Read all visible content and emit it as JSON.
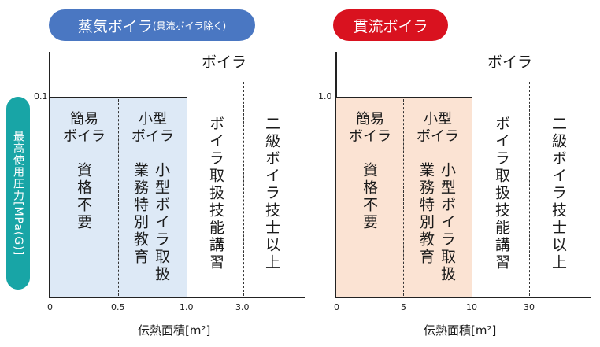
{
  "header": {
    "steam_badge_main": "蒸気ボイラ",
    "steam_badge_note": "(貫流ボイラ除く)",
    "once_through_badge": "貫流ボイラ"
  },
  "y_axis_label": "最高使用圧力[MPa(G)]",
  "steam_panel": {
    "y_tick": "0.1",
    "x_ticks": [
      "0",
      "0.5",
      "1.0",
      "3.0"
    ],
    "x_label": "伝熱面積[m²]",
    "boiler_heading": "ボイラ",
    "simple_boiler": "簡易\nボイラ",
    "small_boiler": "小型\nボイラ",
    "qualification_none": "資格不要",
    "small_training_1": "小型ボイラ取扱",
    "small_training_2": "業務特別教育",
    "handling_course": "ボイラ取扱技能講習",
    "second_class": "二級ボイラ技士以上"
  },
  "once_panel": {
    "y_tick": "1.0",
    "x_ticks": [
      "0",
      "5",
      "10",
      "30"
    ],
    "x_label": "伝熱面積[m²]",
    "boiler_heading": "ボイラ",
    "simple_boiler": "簡易\nボイラ",
    "small_boiler": "小型\nボイラ",
    "qualification_none": "資格不要",
    "small_training_1": "小型ボイラ取扱",
    "small_training_2": "業務特別教育",
    "handling_course": "ボイラ取扱技能講習",
    "second_class": "二級ボイラ技士以上"
  },
  "colors": {
    "steam_badge": "#4a77c2",
    "once_badge": "#d9121f",
    "axis_label_bg": "#18a5a6",
    "steam_fill": "#dde9f6",
    "once_fill": "#fbe3d3"
  }
}
